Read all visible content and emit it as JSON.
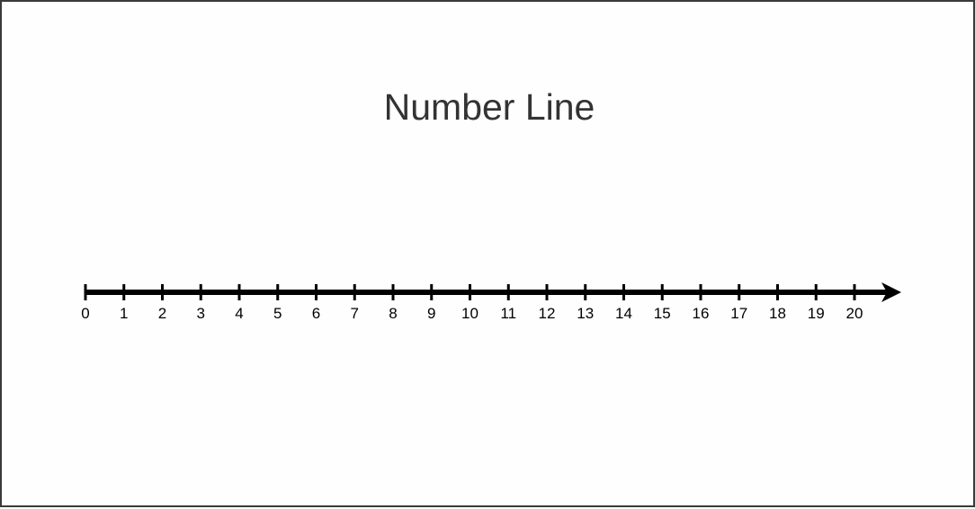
{
  "title": "Number Line",
  "number_line": {
    "min": 0,
    "max": 20,
    "step": 1,
    "labels": [
      "0",
      "1",
      "2",
      "3",
      "4",
      "5",
      "6",
      "7",
      "8",
      "9",
      "10",
      "11",
      "12",
      "13",
      "14",
      "15",
      "16",
      "17",
      "18",
      "19",
      "20"
    ],
    "arrow_right": true,
    "line_color": "#000000"
  }
}
